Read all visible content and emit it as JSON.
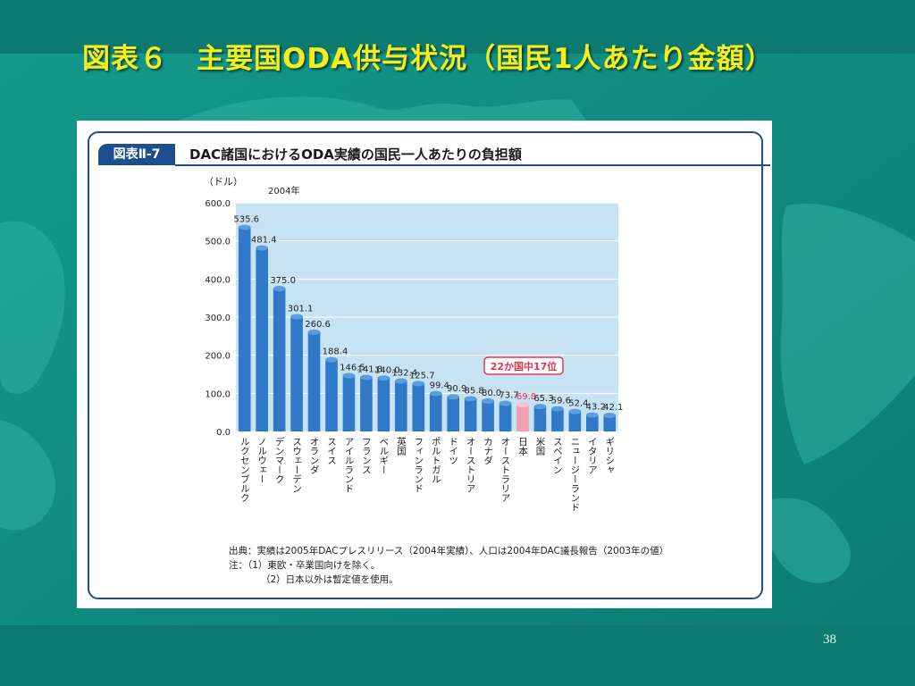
{
  "slide": {
    "title": "図表６　主要国ODA供与状況（国民1人あたり金額）",
    "page_number": "38"
  },
  "figure": {
    "label": "図表Ⅱ-7",
    "title": "DAC諸国におけるODA実績の国民一人あたりの負担額",
    "unit_label": "（ドル）",
    "year_label": "2004年",
    "callout": "22か国中17位",
    "source_line": "出典：実績は2005年DACプレスリリース（2004年実績）、人口は2004年DAC議長報告（2003年の値）",
    "note_1": "注：（1）東欧・卒業国向けを除く。",
    "note_2": "（2）日本以外は暫定値を使用。"
  },
  "chart_data": {
    "type": "bar",
    "categories": [
      "ルクセンブルク",
      "ノルウェー",
      "デンマーク",
      "スウェーデン",
      "オランダ",
      "スイス",
      "アイルランド",
      "フランス",
      "ベルギー",
      "英国",
      "フィンランド",
      "ポルトガル",
      "ドイツ",
      "オーストリア",
      "カナダ",
      "オーストラリア",
      "日本",
      "米国",
      "スペイン",
      "ニュージーランド",
      "イタリア",
      "ギリシャ"
    ],
    "values": [
      535.6,
      481.4,
      375.0,
      301.1,
      260.6,
      188.4,
      146.5,
      141.8,
      140.0,
      132.4,
      125.7,
      99.4,
      90.9,
      85.8,
      80.0,
      73.7,
      69.8,
      65.3,
      59.6,
      52.4,
      43.2,
      42.1
    ],
    "value_labels": [
      "535.6",
      "481.4",
      "375.0",
      "301.1",
      "260.6",
      "188.4",
      "146.5",
      "141.8",
      "140.0",
      "132.4",
      "125.7",
      "99.4",
      "90.9",
      "85.8",
      "80.0",
      "73.7",
      "69.8",
      "65.3",
      "59.6",
      "52.4",
      "43.2",
      "42.1"
    ],
    "highlight_category": "日本",
    "yticks": [
      "0.0",
      "100.0",
      "200.0",
      "300.0",
      "400.0",
      "500.0",
      "600.0"
    ],
    "ylim": [
      0,
      600
    ],
    "grid": true,
    "colors": {
      "bar": "#2f79c8",
      "bar_top": "#5b9ee0",
      "highlight": "#f29fb4",
      "plot_bg": "#c7e2f3",
      "grid": "#ffffff",
      "highlight_text": "#e8324f",
      "callout_border": "#e03a56"
    }
  }
}
